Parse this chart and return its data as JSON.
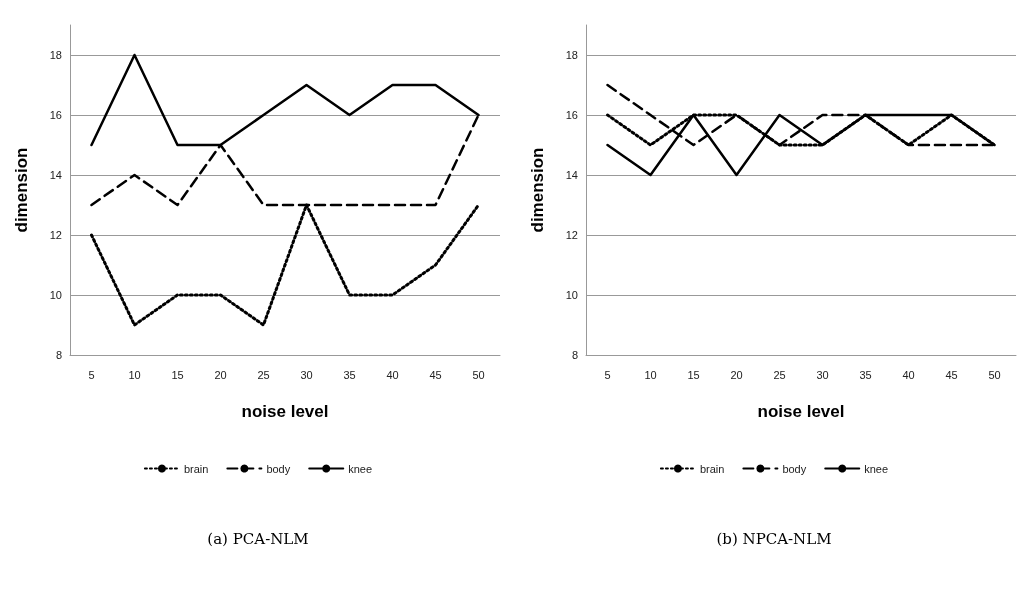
{
  "chart_data": [
    {
      "type": "line",
      "categories": [
        "5",
        "10",
        "15",
        "20",
        "25",
        "30",
        "35",
        "40",
        "45",
        "50"
      ],
      "xlabel": "noise level",
      "ylabel": "dimension",
      "ylim": [
        8,
        19
      ],
      "yticks": [
        8,
        10,
        12,
        14,
        16,
        18
      ],
      "grid": "y",
      "legend": "bottom",
      "annotations": [
        "(a) PCA-NLM"
      ],
      "series": [
        {
          "name": "brain",
          "color": "#000000",
          "line_style": "dotted",
          "values": [
            12,
            9,
            10,
            10,
            9,
            13,
            10,
            10,
            11,
            13
          ]
        },
        {
          "name": "body",
          "color": "#000000",
          "line_style": "dashed",
          "values": [
            13,
            14,
            13,
            15,
            13,
            13,
            13,
            13,
            13,
            16
          ]
        },
        {
          "name": "knee",
          "color": "#000000",
          "line_style": "solid",
          "values": [
            15,
            18,
            15,
            15,
            16,
            17,
            16,
            17,
            17,
            16
          ]
        }
      ]
    },
    {
      "type": "line",
      "categories": [
        "5",
        "10",
        "15",
        "20",
        "25",
        "30",
        "35",
        "40",
        "45",
        "50"
      ],
      "xlabel": "noise level",
      "ylabel": "dimension",
      "ylim": [
        8,
        19
      ],
      "yticks": [
        8,
        10,
        12,
        14,
        16,
        18
      ],
      "grid": "y",
      "legend": "bottom",
      "annotations": [
        "(b) NPCA-NLM"
      ],
      "series": [
        {
          "name": "brain",
          "color": "#000000",
          "line_style": "dotted",
          "values": [
            16,
            15,
            16,
            16,
            15,
            15,
            16,
            15,
            16,
            15
          ]
        },
        {
          "name": "body",
          "color": "#000000",
          "line_style": "dashed",
          "values": [
            17,
            16,
            15,
            16,
            15,
            16,
            16,
            15,
            15,
            15
          ]
        },
        {
          "name": "knee",
          "color": "#000000",
          "line_style": "solid",
          "values": [
            15,
            14,
            16,
            14,
            16,
            15,
            16,
            16,
            16,
            15
          ]
        }
      ]
    }
  ]
}
